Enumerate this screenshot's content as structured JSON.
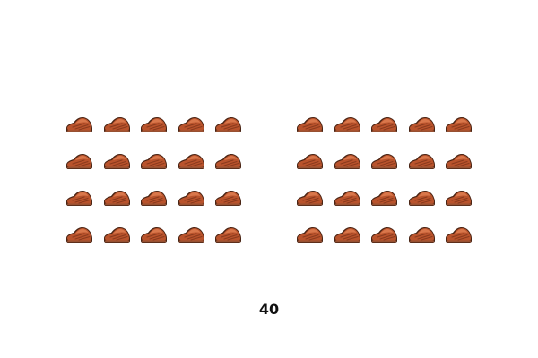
{
  "groups": [
    {
      "name": "left",
      "rows": 4,
      "cols": 5,
      "item_icon": "steak-icon"
    },
    {
      "name": "right",
      "rows": 4,
      "cols": 5,
      "item_icon": "steak-icon"
    }
  ],
  "total_label": "40",
  "colors": {
    "steak_fill": "#b9532c",
    "steak_highlight": "#d9774b",
    "steak_outline": "#4a2414",
    "steak_grill": "#8a3a1d"
  }
}
